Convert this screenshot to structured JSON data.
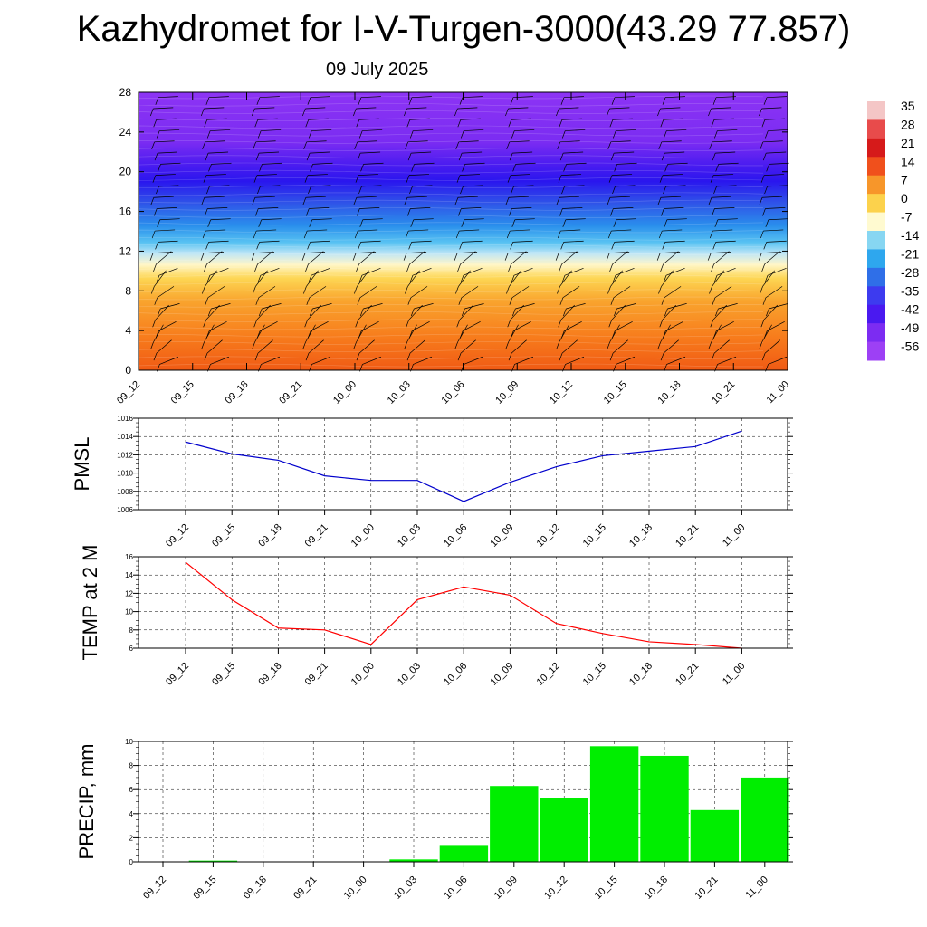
{
  "title": "Kazhydromet for I-V-Turgen-3000(43.29 77.857)",
  "subtitle": "09 July 2025",
  "time_labels": [
    "09_12",
    "09_15",
    "09_18",
    "09_21",
    "10_00",
    "10_03",
    "10_06",
    "10_09",
    "10_12",
    "10_15",
    "10_18",
    "10_21",
    "11_00"
  ],
  "colorbar": {
    "labels": [
      "35",
      "28",
      "21",
      "14",
      "7",
      "0",
      "-7",
      "-14",
      "-21",
      "-28",
      "-35",
      "-42",
      "-49",
      "-56"
    ],
    "colors": [
      "#f4c6c6",
      "#e84b4b",
      "#d61a1a",
      "#f0501c",
      "#f7962a",
      "#fcd24c",
      "#fffad0",
      "#87d6f2",
      "#2ea7ee",
      "#2f6fe8",
      "#3d3bef",
      "#4a19f0",
      "#7c2cf2",
      "#9d40f5"
    ]
  },
  "chart_data": [
    {
      "type": "heatmap",
      "title": "",
      "xlabel": "",
      "ylabel": "",
      "x": [
        "09_12",
        "09_15",
        "09_18",
        "09_21",
        "10_00",
        "10_03",
        "10_06",
        "10_09",
        "10_12",
        "10_15",
        "10_18",
        "10_21",
        "11_00"
      ],
      "ylim": [
        0,
        28
      ],
      "yticks": [
        0,
        4,
        8,
        12,
        16,
        20,
        24,
        28
      ],
      "temperature_by_level": [
        {
          "level": 0,
          "value": 14
        },
        {
          "level": 4,
          "value": 7
        },
        {
          "level": 8,
          "value": -3
        },
        {
          "level": 11,
          "value": -14
        },
        {
          "level": 12,
          "value": -21
        },
        {
          "level": 14,
          "value": -30
        },
        {
          "level": 16,
          "value": -38
        },
        {
          "level": 18,
          "value": -47
        },
        {
          "level": 20,
          "value": -56
        },
        {
          "level": 22,
          "value": -58
        },
        {
          "level": 24,
          "value": -60
        },
        {
          "level": 28,
          "value": -62
        }
      ],
      "wind_barbs": true
    },
    {
      "type": "line",
      "ylabel": "PMSL",
      "x": [
        "09_12",
        "09_15",
        "09_18",
        "09_21",
        "10_00",
        "10_03",
        "10_06",
        "10_09",
        "10_12",
        "10_15",
        "10_18",
        "10_21",
        "11_00"
      ],
      "series": [
        {
          "values": [
            1013.4,
            1012.1,
            1011.4,
            1009.7,
            1009.2,
            1009.2,
            1006.9,
            1009.0,
            1010.7,
            1011.9,
            1012.4,
            1012.9,
            1014.6
          ]
        }
      ],
      "ylim": [
        1006,
        1016
      ],
      "yticks": [
        1006,
        1008,
        1010,
        1012,
        1014,
        1016
      ],
      "color": "#0000cc",
      "grid": true
    },
    {
      "type": "line",
      "ylabel": "TEMP at 2 M",
      "x": [
        "09_12",
        "09_15",
        "09_18",
        "09_21",
        "10_00",
        "10_03",
        "10_06",
        "10_09",
        "10_12",
        "10_15",
        "10_18",
        "10_21",
        "11_00"
      ],
      "series": [
        {
          "values": [
            15.4,
            11.3,
            8.2,
            8.0,
            6.4,
            11.3,
            12.7,
            11.8,
            8.7,
            7.6,
            6.7,
            6.4,
            6.0
          ]
        }
      ],
      "ylim": [
        6,
        16
      ],
      "yticks": [
        6,
        8,
        10,
        12,
        14,
        16
      ],
      "color": "#ff0000",
      "grid": true
    },
    {
      "type": "bar",
      "ylabel": "PRECIP, mm",
      "categories": [
        "09_12",
        "09_15",
        "09_18",
        "09_21",
        "10_00",
        "10_03",
        "10_06",
        "10_09",
        "10_12",
        "10_15",
        "10_18",
        "10_21",
        "11_00"
      ],
      "values": [
        0,
        0.1,
        0,
        0,
        0,
        0.2,
        1.4,
        6.3,
        5.3,
        9.6,
        8.8,
        4.3,
        7.0
      ],
      "ylim": [
        0,
        10
      ],
      "yticks": [
        0,
        2,
        4,
        6,
        8,
        10
      ],
      "color": "#00ee00",
      "grid": true
    }
  ]
}
